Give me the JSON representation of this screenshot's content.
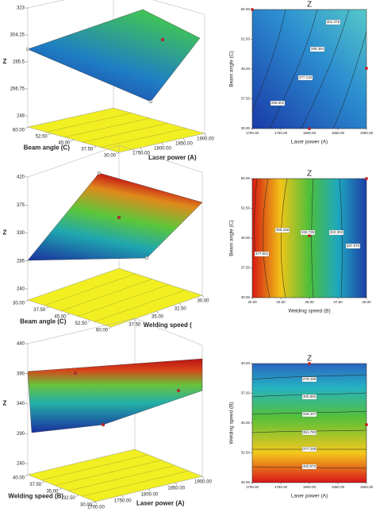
{
  "chart_data": [
    {
      "type": "surface",
      "zlabel": "Z",
      "xlabel": "Laser power (A)",
      "ylabel": "Beam angle (C)",
      "xlim": [
        1700,
        1900
      ],
      "xticks": [
        {
          "value": 1750,
          "label": "1750.00"
        },
        {
          "value": 1800,
          "label": "1800.00"
        },
        {
          "value": 1850,
          "label": "1850.00"
        },
        {
          "value": 1900,
          "label": "1900.00"
        }
      ],
      "ylim": [
        60,
        30
      ],
      "yticks": [
        {
          "value": 60,
          "label": "60.00"
        },
        {
          "value": 52.5,
          "label": "52.50"
        },
        {
          "value": 45,
          "label": "45.00"
        },
        {
          "value": 37.5,
          "label": "37.50"
        },
        {
          "value": 30,
          "label": "30.00"
        }
      ],
      "zlim": [
        248,
        323
      ],
      "zticks": [
        248,
        266.75,
        285.5,
        304.25,
        323
      ]
    },
    {
      "type": "contour",
      "title": "Z",
      "xlabel": "Laser power (A)",
      "ylabel": "Beam angle (C)",
      "xlim": [
        1700,
        1900
      ],
      "xticks": [
        {
          "value": 1700,
          "label": "1700.00"
        },
        {
          "value": 1750,
          "label": "1750.00"
        },
        {
          "value": 1800,
          "label": "1800.00"
        },
        {
          "value": 1850,
          "label": "1850.00"
        },
        {
          "value": 1900,
          "label": "1900.00"
        }
      ],
      "ylim": [
        30,
        60
      ],
      "yticks": [
        {
          "value": 30,
          "label": "30.00"
        },
        {
          "value": 37.5,
          "label": "37.50"
        },
        {
          "value": 45,
          "label": "45.00"
        },
        {
          "value": 52.5,
          "label": "52.50"
        },
        {
          "value": 60,
          "label": "60.00"
        }
      ],
      "contour_labels": [
        "301.375",
        "289.384",
        "277.133",
        "265.601"
      ]
    },
    {
      "type": "surface",
      "zlabel": "Z",
      "xlabel": "Welding speed (",
      "ylabel": "Beam angle (C)",
      "xlim": [
        40,
        30
      ],
      "xticks": [
        {
          "value": 37.5,
          "label": "37.50"
        },
        {
          "value": 35,
          "label": "35.00"
        },
        {
          "value": 32.5,
          "label": "32.50"
        },
        {
          "value": 30,
          "label": "30.00"
        }
      ],
      "ylim": [
        30,
        60
      ],
      "yticks": [
        {
          "value": 30,
          "label": "30.00"
        },
        {
          "value": 37.5,
          "label": "37.50"
        },
        {
          "value": 45,
          "label": "45.00"
        },
        {
          "value": 52.5,
          "label": "52.50"
        },
        {
          "value": 60,
          "label": "60.00"
        }
      ],
      "zlim": [
        240,
        420
      ],
      "zticks": [
        240,
        285,
        330,
        375,
        420
      ]
    },
    {
      "type": "contour",
      "title": "Z",
      "xlabel": "Welding speed (B)",
      "ylabel": "Beam angle (C)",
      "xlim": [
        30,
        40
      ],
      "xticks": [
        {
          "value": 30,
          "label": "30.00"
        },
        {
          "value": 32.5,
          "label": "32.50"
        },
        {
          "value": 35,
          "label": "35.00"
        },
        {
          "value": 37.5,
          "label": "37.50"
        },
        {
          "value": 40,
          "label": "40.00"
        }
      ],
      "ylim": [
        30,
        60
      ],
      "yticks": [
        {
          "value": 30,
          "label": "30.00"
        },
        {
          "value": 37.5,
          "label": "37.50"
        },
        {
          "value": 45,
          "label": "45.00"
        },
        {
          "value": 52.5,
          "label": "52.50"
        },
        {
          "value": 60,
          "label": "60.00"
        }
      ],
      "contour_labels": [
        "355.168",
        "332.735",
        "310.302",
        "287.870",
        "377.601"
      ]
    },
    {
      "type": "surface",
      "zlabel": "Z",
      "xlabel": "Laser power (A)",
      "ylabel": "Welding speed (B)",
      "xlim": [
        1700,
        1900
      ],
      "xticks": [
        {
          "value": 1700,
          "label": "1700.00"
        },
        {
          "value": 1750,
          "label": "1750.00"
        },
        {
          "value": 1800,
          "label": "1800.00"
        },
        {
          "value": 1850,
          "label": "1850.00"
        },
        {
          "value": 1900,
          "label": "1900.00"
        }
      ],
      "ylim": [
        40,
        30
      ],
      "yticks": [
        {
          "value": 40,
          "label": "40.00"
        },
        {
          "value": 37.5,
          "label": "37.50"
        },
        {
          "value": 35,
          "label": "35.00"
        },
        {
          "value": 32.5,
          "label": "32.50"
        },
        {
          "value": 30,
          "label": "30.00"
        }
      ],
      "zlim": [
        240,
        440
      ],
      "zticks": [
        240,
        290,
        340,
        390,
        440
      ]
    },
    {
      "type": "contour",
      "title": "Z",
      "xlabel": "Laser power (A)",
      "ylabel": "Welding speed (B)",
      "xlim": [
        1700,
        1900
      ],
      "xticks": [
        {
          "value": 1700,
          "label": "1700.00"
        },
        {
          "value": 1750,
          "label": "1750.00"
        },
        {
          "value": 1800,
          "label": "1800.00"
        },
        {
          "value": 1850,
          "label": "1850.00"
        },
        {
          "value": 1900,
          "label": "1900.00"
        }
      ],
      "ylim": [
        30,
        40
      ],
      "yticks": [
        {
          "value": 30,
          "label": "30.00"
        },
        {
          "value": 32.5,
          "label": "32.50"
        },
        {
          "value": 35,
          "label": "35.00"
        },
        {
          "value": 37.5,
          "label": "37.50"
        },
        {
          "value": 40,
          "label": "40.00"
        }
      ],
      "contour_labels": [
        "275.448",
        "300.892",
        "326.337",
        "351.783",
        "377.228",
        "402.673"
      ]
    }
  ]
}
